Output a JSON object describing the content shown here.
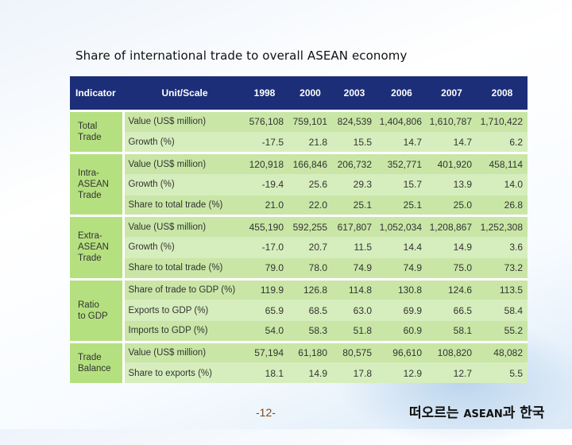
{
  "title": "Share  of international trade to overall ASEAN economy",
  "table": {
    "headers": {
      "indicator": "Indicator",
      "unit": "Unit/Scale",
      "years": [
        "1998",
        "2000",
        "2003",
        "2006",
        "2007",
        "2008"
      ]
    },
    "groups": [
      {
        "category": "Total\nTrade",
        "rows": [
          {
            "unit": "Value (US$ million)",
            "values": [
              "576,108",
              "759,101",
              "824,539",
              "1,404,806",
              "1,610,787",
              "1,710,422"
            ]
          },
          {
            "unit": "Growth (%)",
            "values": [
              "-17.5",
              "21.8",
              "15.5",
              "14.7",
              "14.7",
              "6.2"
            ]
          }
        ]
      },
      {
        "category": "Intra-\nASEAN\nTrade",
        "rows": [
          {
            "unit": "Value (US$ million)",
            "values": [
              "120,918",
              "166,846",
              "206,732",
              "352,771",
              "401,920",
              "458,114"
            ]
          },
          {
            "unit": "Growth (%)",
            "values": [
              "-19.4",
              "25.6",
              "29.3",
              "15.7",
              "13.9",
              "14.0"
            ]
          },
          {
            "unit": "Share to total trade (%)",
            "values": [
              "21.0",
              "22.0",
              "25.1",
              "25.1",
              "25.0",
              "26.8"
            ]
          }
        ]
      },
      {
        "category": "Extra-\nASEAN\nTrade",
        "rows": [
          {
            "unit": "Value (US$ million)",
            "values": [
              "455,190",
              "592,255",
              "617,807",
              "1,052,034",
              "1,208,867",
              "1,252,308"
            ]
          },
          {
            "unit": "Growth (%)",
            "values": [
              "-17.0",
              "20.7",
              "11.5",
              "14.4",
              "14.9",
              "3.6"
            ]
          },
          {
            "unit": "Share to total trade (%)",
            "values": [
              "79.0",
              "78.0",
              "74.9",
              "74.9",
              "75.0",
              "73.2"
            ]
          }
        ]
      },
      {
        "category": "Ratio\nto GDP",
        "rows": [
          {
            "unit": "Share of trade to GDP (%)",
            "values": [
              "119.9",
              "126.8",
              "114.8",
              "130.8",
              "124.6",
              "113.5"
            ]
          },
          {
            "unit": "Exports to GDP (%)",
            "values": [
              "65.9",
              "68.5",
              "63.0",
              "69.9",
              "66.5",
              "58.4"
            ]
          },
          {
            "unit": "Imports to GDP (%)",
            "values": [
              "54.0",
              "58.3",
              "51.8",
              "60.9",
              "58.1",
              "55.2"
            ]
          }
        ]
      },
      {
        "category": "Trade\nBalance",
        "rows": [
          {
            "unit": "Value (US$ million)",
            "values": [
              "57,194",
              "61,180",
              "80,575",
              "96,610",
              "108,820",
              "48,082"
            ]
          },
          {
            "unit": "Share to exports (%)",
            "values": [
              "18.1",
              "14.9",
              "17.8",
              "12.9",
              "12.7",
              "5.5"
            ]
          }
        ]
      }
    ]
  },
  "footer": {
    "page_number": "-12-",
    "brand_prefix": "떠오르는",
    "brand_asean": "ASEAN",
    "brand_suffix": "과 한국"
  },
  "colors": {
    "header_bg": "#1c2e78",
    "category_bg": "#b5e080",
    "cell_bg": "#c9e6a6"
  }
}
